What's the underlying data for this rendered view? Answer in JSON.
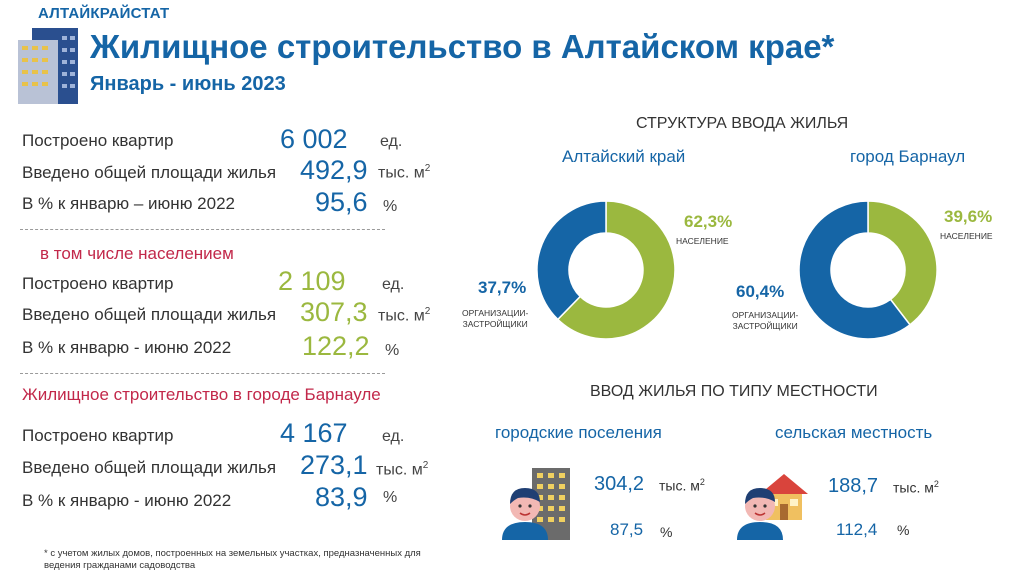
{
  "header": {
    "agency": "АЛТАЙКРАЙСТАТ",
    "title": "Жилищное строительство в Алтайском крае*",
    "subtitle": "Январь - июнь 2023"
  },
  "total": {
    "flats_label": "Построено квартир",
    "flats_value": "6 002",
    "flats_unit": "ед.",
    "area_label": "Введено общей площади жилья",
    "area_value": "492,9",
    "area_unit": "тыс. м",
    "pct_label": "В % к январю – июню 2022",
    "pct_value": "95,6",
    "pct_unit": "%"
  },
  "population": {
    "heading": "в том числе населением",
    "flats_label": "Построено квартир",
    "flats_value": "2 109",
    "flats_unit": "ед.",
    "area_label": "Введено общей площади жилья",
    "area_value": "307,3",
    "area_unit": "тыс. м",
    "pct_label": "В % к январю - июню 2022",
    "pct_value": "122,2",
    "pct_unit": "%"
  },
  "barnaul": {
    "heading": "Жилищное строительство в городе Барнауле",
    "flats_label": "Построено квартир",
    "flats_value": "4 167",
    "flats_unit": "ед.",
    "area_label": "Введено общей площади жилья",
    "area_value": "273,1",
    "area_unit": "тыс. м",
    "pct_label": "В % к январю - июню 2022",
    "pct_value": "83,9",
    "pct_unit": "%"
  },
  "structure": {
    "heading": "СТРУКТУРА ВВОДА ЖИЛЬЯ",
    "region_label": "Алтайский край",
    "city_label": "город Барнаул",
    "pop_caption": "НАСЕЛЕНИЕ",
    "org_caption_1": "ОРГАНИЗАЦИИ-",
    "org_caption_2": "ЗАСТРОЙЩИКИ"
  },
  "chart_data": [
    {
      "type": "pie",
      "title": "Алтайский край",
      "categories": [
        "НАСЕЛЕНИЕ",
        "ОРГАНИЗАЦИИ-ЗАСТРОЙЩИКИ"
      ],
      "values": [
        62.3,
        37.7
      ],
      "labels": [
        "62,3%",
        "37,7%"
      ],
      "colors": [
        "#9bb83f",
        "#1565a6"
      ]
    },
    {
      "type": "pie",
      "title": "город Барнаул",
      "categories": [
        "НАСЕЛЕНИЕ",
        "ОРГАНИЗАЦИИ-ЗАСТРОЙЩИКИ"
      ],
      "values": [
        39.6,
        60.4
      ],
      "labels": [
        "39,6%",
        "60,4%"
      ],
      "colors": [
        "#9bb83f",
        "#1565a6"
      ]
    }
  ],
  "locality": {
    "heading": "ВВОД ЖИЛЬЯ ПО ТИПУ МЕСТНОСТИ",
    "urban_label": "городские поселения",
    "urban_area": "304,2",
    "urban_area_unit": "тыс. м",
    "urban_pct": "87,5",
    "urban_pct_unit": "%",
    "rural_label": "сельская местность",
    "rural_area": "188,7",
    "rural_area_unit": "тыс. м",
    "rural_pct": "112,4",
    "rural_pct_unit": "%"
  },
  "footnote": {
    "line1": "* с учетом жилых домов, построенных на земельных участках, предназначенных для",
    "line2": "ведения гражданами садоводства"
  },
  "colors": {
    "blue": "#1565a6",
    "green": "#9bb83f",
    "red": "#c2284a"
  },
  "icons": [
    "building-icon",
    "person-icon",
    "apartment-building-icon",
    "house-icon"
  ]
}
